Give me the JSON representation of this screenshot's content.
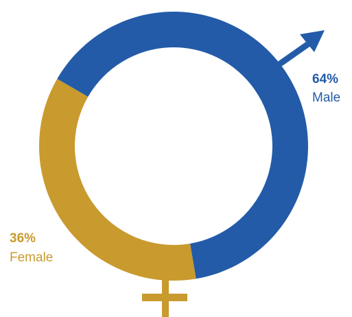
{
  "chart_data": {
    "type": "pie",
    "categories": [
      "Male",
      "Female"
    ],
    "values": [
      64,
      36
    ],
    "value_labels": [
      "64%",
      "36%"
    ],
    "colors": [
      "#235ba8",
      "#c99a2e"
    ],
    "donut": true,
    "male_icon": "male-symbol-arrow-icon",
    "female_icon": "female-symbol-cross-icon"
  }
}
